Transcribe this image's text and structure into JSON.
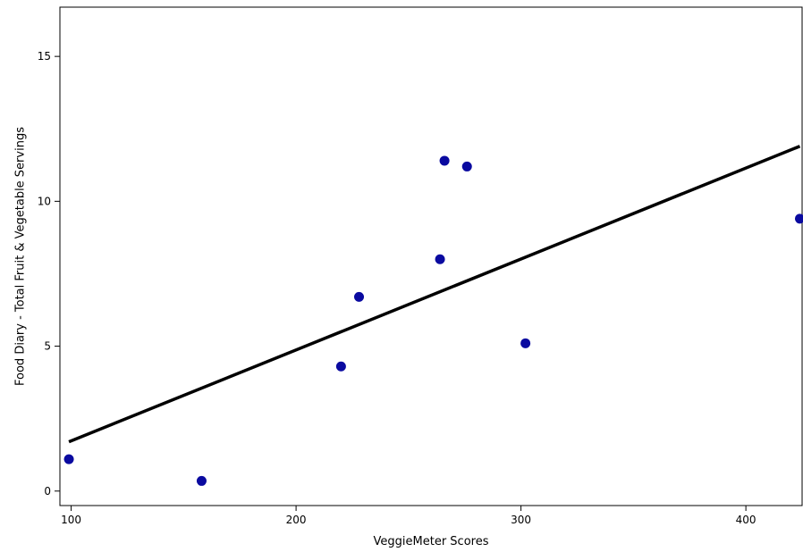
{
  "chart_data": {
    "type": "scatter",
    "xlabel": "VeggieMeter Scores",
    "ylabel": "Food Diary - Total Fruit & Vegetable Servings",
    "xlim": [
      95,
      425
    ],
    "ylim": [
      -0.5,
      16.7
    ],
    "x_ticks": [
      100,
      200,
      300,
      400
    ],
    "y_ticks": [
      0,
      5,
      10,
      15
    ],
    "grid": false,
    "legend": "none",
    "colors": {
      "points": "#0a0aa0",
      "line": "#000000",
      "frame": "#000000"
    },
    "points": [
      {
        "x": 99,
        "y": 1.1
      },
      {
        "x": 158,
        "y": 0.35
      },
      {
        "x": 220,
        "y": 4.3
      },
      {
        "x": 228,
        "y": 6.7
      },
      {
        "x": 264,
        "y": 8.0
      },
      {
        "x": 266,
        "y": 11.4
      },
      {
        "x": 276,
        "y": 11.2
      },
      {
        "x": 302,
        "y": 5.1
      },
      {
        "x": 424,
        "y": 9.4
      }
    ],
    "fit_line": {
      "x": [
        99,
        424
      ],
      "y": [
        1.7,
        11.9
      ]
    }
  }
}
